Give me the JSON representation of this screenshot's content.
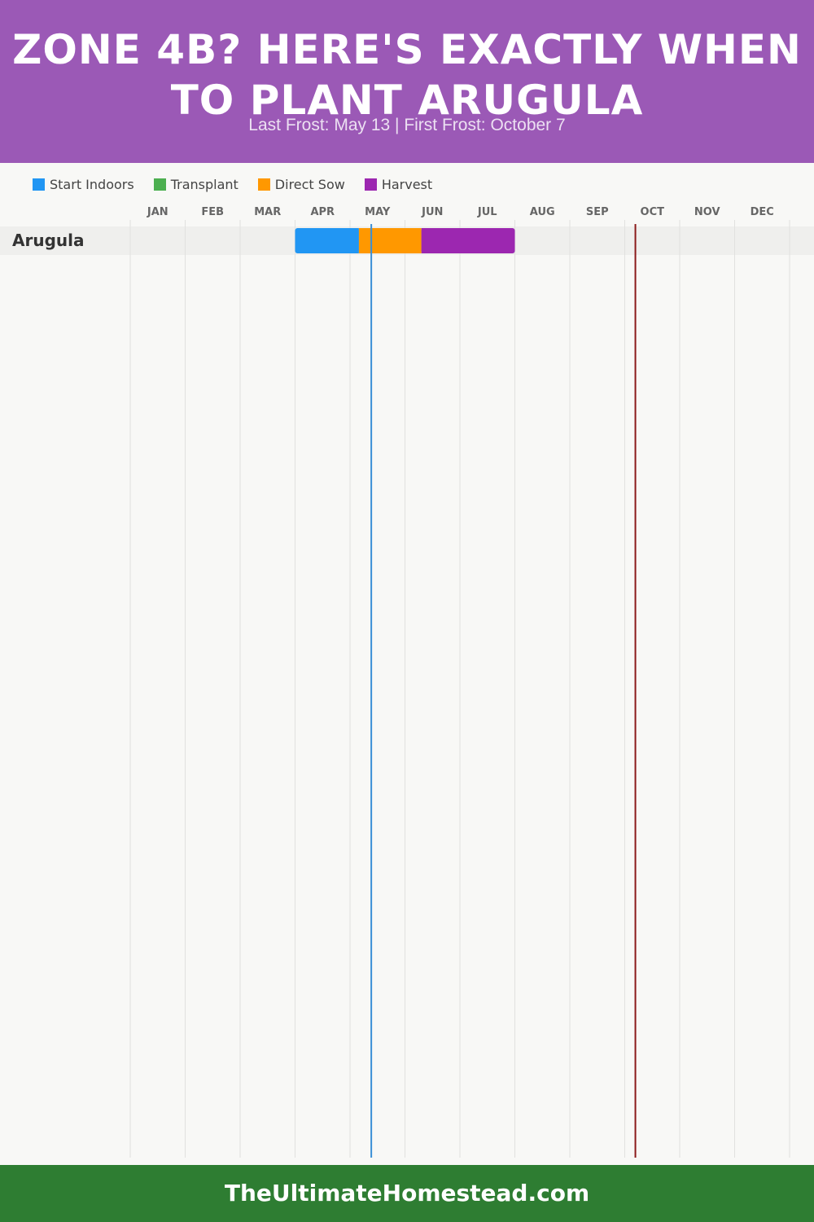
{
  "header": {
    "title": "ZONE 4B? HERE'S EXACTLY WHEN TO PLANT ARUGULA",
    "subtitle": "Last Frost: May 13 | First Frost: October 7"
  },
  "footer": {
    "site": "TheUltimateHomestead.com"
  },
  "colors": {
    "header_bg": "#9b59b6",
    "footer_bg": "#2e7d32",
    "start_indoors": "#2196f3",
    "transplant": "#4caf50",
    "direct_sow": "#ff9800",
    "harvest": "#9c27b0",
    "last_frost_line": "#3a8fd6",
    "first_frost_line": "#8b1a1a"
  },
  "chart_data": {
    "type": "gantt",
    "title": "ZONE 4B? HERE'S EXACTLY WHEN TO PLANT ARUGULA",
    "subtitle": "Last Frost: May 13 | First Frost: October 7",
    "months": [
      "JAN",
      "FEB",
      "MAR",
      "APR",
      "MAY",
      "JUN",
      "JUL",
      "AUG",
      "SEP",
      "OCT",
      "NOV",
      "DEC"
    ],
    "legend": [
      {
        "name": "Start Indoors",
        "color": "#2196f3"
      },
      {
        "name": "Transplant",
        "color": "#4caf50"
      },
      {
        "name": "Direct Sow",
        "color": "#ff9800"
      },
      {
        "name": "Harvest",
        "color": "#9c27b0"
      }
    ],
    "legend_position": "top-left",
    "grid": true,
    "crops": [
      {
        "name": "Arugula",
        "phases": [
          {
            "name": "Start Indoors",
            "start": "Apr 1",
            "end": "May 6",
            "color": "#2196f3"
          },
          {
            "name": "Direct Sow",
            "start": "May 6",
            "end": "Jun 10",
            "color": "#ff9800"
          },
          {
            "name": "Harvest",
            "start": "Jun 10",
            "end": "Aug 1",
            "color": "#9c27b0"
          }
        ]
      }
    ],
    "frost_lines": [
      {
        "name": "Last Frost",
        "date": "May 13",
        "color": "#3a8fd6"
      },
      {
        "name": "First Frost",
        "date": "October 7",
        "color": "#8b1a1a"
      }
    ]
  }
}
